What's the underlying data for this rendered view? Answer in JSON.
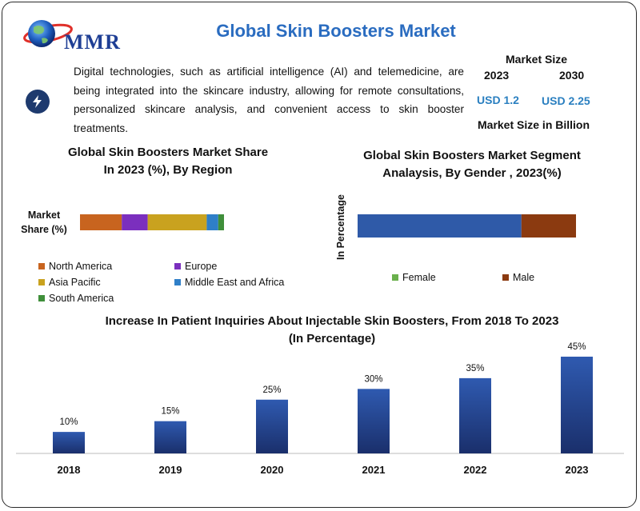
{
  "header": {
    "logo_text": "MMR",
    "title": "Global Skin Boosters Market"
  },
  "description": {
    "icon": "lightning-icon",
    "text": "Digital technologies, such as artificial intelligence (AI) and telemedicine, are being integrated into the skincare industry, allowing for remote consultations, personalized skincare analysis, and convenient access to skin booster treatments."
  },
  "market_size": {
    "title": "Market Size",
    "year1": "2023",
    "year2": "2030",
    "value1": "USD 1.2",
    "value2": "USD 2.25",
    "unit_label": "Market Size in Billion"
  },
  "chart_data": [
    {
      "type": "bar",
      "orientation": "horizontal-stacked",
      "title_line1": "Global Skin Boosters Market Share",
      "title_line2": "In 2023 (%), By Region",
      "category_label_line1": "Market",
      "category_label_line2": "Share (%)",
      "xlim": [
        0,
        100
      ],
      "series": [
        {
          "name": "North America",
          "value": 29,
          "color": "#c8641f"
        },
        {
          "name": "Europe",
          "value": 18,
          "color": "#7b2fbe"
        },
        {
          "name": "Asia Pacific",
          "value": 41,
          "color": "#c9a21f"
        },
        {
          "name": "Middle East and Africa",
          "value": 8,
          "color": "#2f7fc8"
        },
        {
          "name": "South America",
          "value": 4,
          "color": "#3f8f3a"
        }
      ],
      "legend_position": "bottom"
    },
    {
      "type": "bar",
      "orientation": "horizontal-stacked",
      "title_line1": "Global Skin Boosters Market Segment",
      "title_line2": "Analaysis, By Gender , 2023(%)",
      "ylabel": "In Percentage",
      "xlim": [
        0,
        100
      ],
      "series": [
        {
          "name": "Female",
          "value": 75,
          "color": "#2f5aa8",
          "legend_color": "#6ab04c"
        },
        {
          "name": "Male",
          "value": 25,
          "color": "#8b3a10",
          "legend_color": "#8b3a10"
        }
      ],
      "legend_position": "bottom"
    },
    {
      "type": "bar",
      "title_line1": "Increase In Patient Inquiries About Injectable Skin Boosters, From 2018 To 2023",
      "title_line2": "(In Percentage)",
      "categories": [
        "2018",
        "2019",
        "2020",
        "2021",
        "2022",
        "2023"
      ],
      "values": [
        10,
        15,
        25,
        30,
        35,
        45
      ],
      "labels": [
        "10%",
        "15%",
        "25%",
        "30%",
        "35%",
        "45%"
      ],
      "ylim": [
        0,
        45
      ],
      "bar_color_top": "#2f5ab0",
      "bar_color_bottom": "#1a2f6b"
    }
  ]
}
